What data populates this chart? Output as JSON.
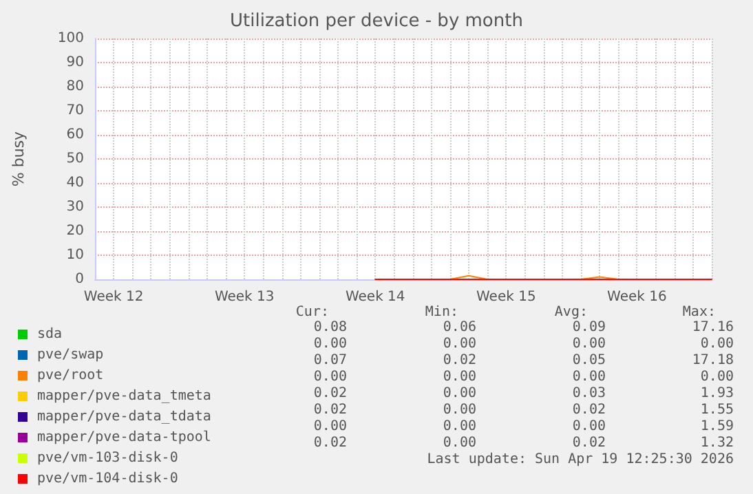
{
  "chart_data": {
    "type": "line",
    "title": "Utilization per device - by month",
    "ylabel": "% busy",
    "categories": [
      null,
      "Week 12",
      null,
      null,
      null,
      null,
      null,
      null,
      "Week 13",
      null,
      null,
      null,
      null,
      null,
      null,
      "Week 14",
      null,
      null,
      null,
      null,
      null,
      null,
      "Week 15",
      null,
      null,
      null,
      null,
      null,
      null,
      "Week 16",
      null,
      null,
      null,
      null
    ],
    "ylim": [
      0,
      100
    ],
    "yticks": [
      0,
      10,
      20,
      30,
      40,
      50,
      60,
      70,
      80,
      90,
      100
    ],
    "grid": true,
    "legend": "bottom left",
    "marker": "none",
    "line_style": "solid",
    "series": [
      {
        "name": "sda",
        "color": "#00cc00",
        "values": [
          null,
          null,
          null,
          null,
          null,
          null,
          null,
          null,
          null,
          null,
          null,
          null,
          null,
          null,
          null,
          null,
          null,
          null,
          null,
          null,
          null,
          null,
          null,
          null,
          null,
          null,
          null,
          null,
          null,
          null,
          null,
          null,
          null,
          null
        ]
      },
      {
        "name": "pve/swap",
        "color": "#0066b3",
        "values": [
          null,
          null,
          null,
          null,
          null,
          null,
          null,
          null,
          null,
          null,
          null,
          null,
          null,
          null,
          null,
          null,
          null,
          null,
          null,
          null,
          null,
          null,
          null,
          null,
          null,
          null,
          null,
          null,
          null,
          null,
          null,
          null,
          null,
          null
        ]
      },
      {
        "name": "pve/root",
        "color": "#ff8000",
        "values": [
          null,
          null,
          null,
          null,
          null,
          null,
          null,
          null,
          null,
          null,
          null,
          null,
          null,
          null,
          null,
          null,
          null,
          null,
          null,
          0,
          1.5,
          0,
          null,
          null,
          null,
          null,
          0,
          1,
          0,
          null,
          null,
          null,
          null,
          null
        ]
      },
      {
        "name": "mapper/pve-data_tmeta",
        "color": "#ffcc00",
        "values": [
          null,
          null,
          null,
          null,
          null,
          null,
          null,
          null,
          null,
          null,
          null,
          null,
          null,
          null,
          null,
          null,
          null,
          null,
          null,
          null,
          null,
          null,
          null,
          null,
          null,
          null,
          null,
          null,
          null,
          null,
          null,
          null,
          null,
          null
        ]
      },
      {
        "name": "mapper/pve-data_tdata",
        "color": "#330099",
        "values": [
          null,
          null,
          null,
          null,
          null,
          null,
          null,
          null,
          null,
          null,
          null,
          null,
          null,
          null,
          null,
          null,
          null,
          null,
          null,
          null,
          null,
          null,
          null,
          null,
          null,
          null,
          null,
          null,
          null,
          null,
          null,
          null,
          null,
          null
        ]
      },
      {
        "name": "mapper/pve-data-tpool",
        "color": "#990099",
        "values": [
          null,
          null,
          null,
          null,
          null,
          null,
          null,
          null,
          null,
          null,
          null,
          null,
          null,
          null,
          null,
          null,
          null,
          null,
          null,
          null,
          null,
          null,
          null,
          null,
          null,
          null,
          null,
          null,
          null,
          null,
          null,
          null,
          null,
          null
        ]
      },
      {
        "name": "pve/vm-103-disk-0",
        "color": "#ccff00",
        "values": [
          null,
          null,
          null,
          null,
          null,
          null,
          null,
          null,
          null,
          null,
          null,
          null,
          null,
          null,
          null,
          null,
          null,
          null,
          null,
          null,
          null,
          null,
          null,
          null,
          null,
          null,
          null,
          null,
          null,
          null,
          null,
          null,
          null,
          null
        ]
      },
      {
        "name": "pve/vm-104-disk-0",
        "color": "#ff0000",
        "values": [
          null,
          null,
          null,
          null,
          null,
          null,
          null,
          null,
          null,
          null,
          null,
          null,
          null,
          null,
          null,
          0,
          0,
          0,
          0,
          0,
          0,
          0,
          0,
          0,
          0,
          0,
          0,
          0,
          0,
          0,
          0,
          0,
          0,
          0
        ]
      }
    ],
    "annotations": [
      "Cur:",
      "Min:",
      "Avg:",
      "Max:",
      "0.08",
      "0.06",
      "0.09",
      "17.16",
      "0.00",
      "0.00",
      "0.00",
      "0.00",
      "0.07",
      "0.02",
      "0.05",
      "17.18",
      "0.00",
      "0.00",
      "0.00",
      "0.00",
      "0.02",
      "0.00",
      "0.03",
      "1.93",
      "0.02",
      "0.00",
      "0.02",
      "1.55",
      "0.00",
      "0.00",
      "0.00",
      "1.59",
      "0.02",
      "0.00",
      "0.02",
      "1.32",
      "Last update: Sun Apr 19 12:25:30 2026"
    ]
  }
}
